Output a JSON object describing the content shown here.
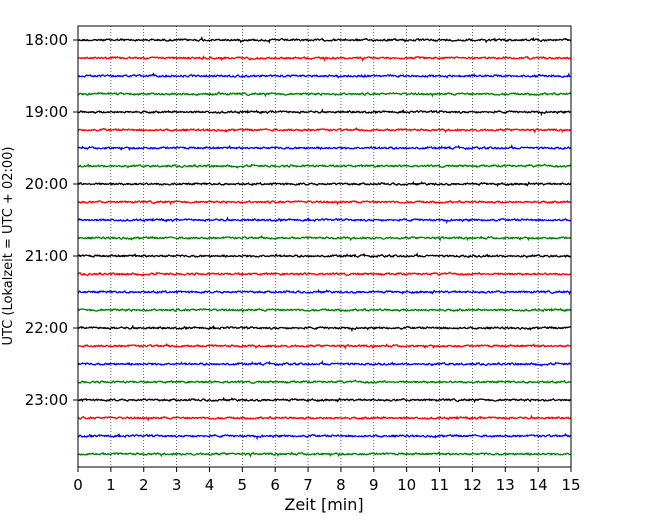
{
  "chart_data": {
    "type": "line",
    "title": "",
    "xlabel": "Zeit  [min]",
    "ylabel": "UTC (Lokalzeit = UTC + 02:00)",
    "xlim": [
      0,
      15
    ],
    "x_ticks": [
      "0",
      "1",
      "2",
      "3",
      "4",
      "5",
      "6",
      "7",
      "8",
      "9",
      "10",
      "11",
      "12",
      "13",
      "14",
      "15"
    ],
    "y_ticks": [
      {
        "label": "18:00",
        "trace": 0
      },
      {
        "label": "19:00",
        "trace": 4
      },
      {
        "label": "20:00",
        "trace": 8
      },
      {
        "label": "21:00",
        "trace": 12
      },
      {
        "label": "22:00",
        "trace": 16
      },
      {
        "label": "23:00",
        "trace": 20
      }
    ],
    "trace_start_times": [
      "18:00",
      "18:15",
      "18:30",
      "18:45",
      "19:00",
      "19:15",
      "19:30",
      "19:45",
      "20:00",
      "20:15",
      "20:30",
      "20:45",
      "21:00",
      "21:15",
      "21:30",
      "21:45",
      "22:00",
      "22:15",
      "22:30",
      "22:45",
      "23:00",
      "23:15",
      "23:30",
      "23:45"
    ],
    "trace_colors": [
      "#000000",
      "#ff0000",
      "#0000ff",
      "#008000"
    ],
    "grid": "vertical dotted at each minute",
    "legend": "none"
  }
}
